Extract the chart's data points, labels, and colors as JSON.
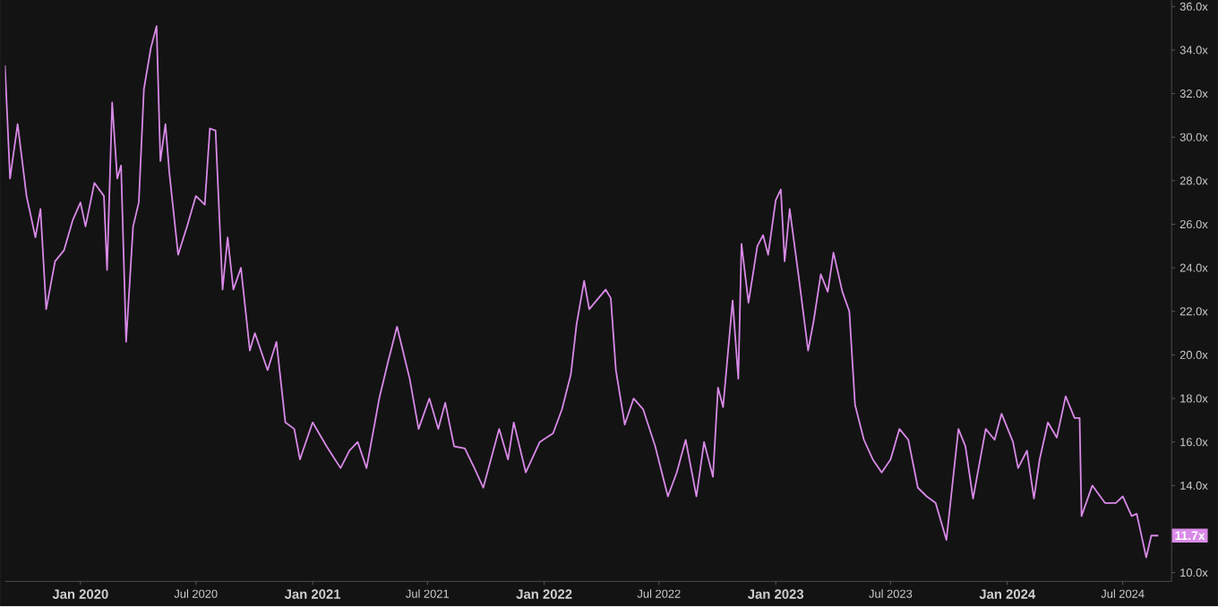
{
  "chart_data": {
    "type": "line",
    "x": [
      "2019-09-04",
      "2019-09-12",
      "2019-09-24",
      "2019-10-08",
      "2019-10-22",
      "2019-10-30",
      "2019-11-08",
      "2019-11-22",
      "2019-12-06",
      "2019-12-20",
      "2020-01-01",
      "2020-01-09",
      "2020-01-23",
      "2020-02-07",
      "2020-02-12",
      "2020-02-20",
      "2020-02-28",
      "2020-03-05",
      "2020-03-13",
      "2020-03-24",
      "2020-04-02",
      "2020-04-10",
      "2020-04-21",
      "2020-04-30",
      "2020-05-06",
      "2020-05-14",
      "2020-05-20",
      "2020-06-03",
      "2020-06-17",
      "2020-07-01",
      "2020-07-15",
      "2020-07-23",
      "2020-08-01",
      "2020-08-12",
      "2020-08-20",
      "2020-08-29",
      "2020-09-10",
      "2020-09-24",
      "2020-10-02",
      "2020-10-22",
      "2020-11-05",
      "2020-11-19",
      "2020-12-03",
      "2020-12-12",
      "2021-01-01",
      "2021-01-23",
      "2021-02-14",
      "2021-02-28",
      "2021-03-13",
      "2021-03-27",
      "2021-04-16",
      "2021-04-30",
      "2021-05-14",
      "2021-06-03",
      "2021-06-17",
      "2021-07-04",
      "2021-07-18",
      "2021-07-29",
      "2021-08-12",
      "2021-08-29",
      "2021-09-13",
      "2021-09-27",
      "2021-10-22",
      "2021-11-05",
      "2021-11-14",
      "2021-12-03",
      "2021-12-25",
      "2022-01-15",
      "2022-01-29",
      "2022-02-12",
      "2022-02-21",
      "2022-03-05",
      "2022-03-13",
      "2022-04-08",
      "2022-04-16",
      "2022-04-24",
      "2022-05-08",
      "2022-05-22",
      "2022-06-06",
      "2022-06-25",
      "2022-07-15",
      "2022-07-29",
      "2022-08-12",
      "2022-08-29",
      "2022-09-10",
      "2022-09-24",
      "2022-10-02",
      "2022-10-10",
      "2022-10-25",
      "2022-11-03",
      "2022-11-08",
      "2022-11-19",
      "2022-12-03",
      "2022-12-12",
      "2022-12-20",
      "2023-01-01",
      "2023-01-09",
      "2023-01-15",
      "2023-01-23",
      "2023-02-07",
      "2023-02-21",
      "2023-03-02",
      "2023-03-13",
      "2023-03-24",
      "2023-04-02",
      "2023-04-16",
      "2023-04-27",
      "2023-05-06",
      "2023-05-20",
      "2023-06-03",
      "2023-06-17",
      "2023-07-01",
      "2023-07-15",
      "2023-07-29",
      "2023-08-13",
      "2023-08-27",
      "2023-09-10",
      "2023-09-27",
      "2023-10-16",
      "2023-10-27",
      "2023-11-08",
      "2023-11-28",
      "2023-12-12",
      "2023-12-23",
      "2024-01-10",
      "2024-01-18",
      "2024-02-01",
      "2024-02-12",
      "2024-02-21",
      "2024-03-05",
      "2024-03-19",
      "2024-04-02",
      "2024-04-16",
      "2024-04-24",
      "2024-04-27",
      "2024-05-14",
      "2024-06-03",
      "2024-06-20",
      "2024-07-01",
      "2024-07-15",
      "2024-07-23",
      "2024-08-07",
      "2024-08-15",
      "2024-08-26"
    ],
    "series": [
      {
        "color": "#d98ae8",
        "values": [
          33.3,
          28.1,
          30.6,
          27.3,
          25.4,
          26.7,
          22.1,
          24.3,
          24.8,
          26.2,
          27.0,
          25.9,
          27.9,
          27.3,
          23.9,
          31.6,
          28.1,
          28.7,
          20.6,
          25.9,
          27.0,
          32.2,
          34.1,
          35.1,
          28.9,
          30.6,
          28.4,
          24.6,
          25.9,
          27.3,
          26.9,
          30.4,
          30.3,
          23.0,
          25.4,
          23.0,
          24.0,
          20.2,
          21.0,
          19.3,
          20.6,
          16.9,
          16.6,
          15.2,
          16.9,
          15.8,
          14.8,
          15.6,
          16.0,
          14.8,
          18.0,
          19.7,
          21.3,
          18.9,
          16.6,
          18.0,
          16.6,
          17.8,
          15.8,
          15.7,
          14.8,
          13.9,
          16.6,
          15.2,
          16.9,
          14.6,
          16.0,
          16.4,
          17.5,
          19.1,
          21.4,
          23.4,
          22.1,
          23.0,
          22.6,
          19.3,
          16.8,
          18.0,
          17.5,
          15.8,
          13.5,
          14.6,
          16.1,
          13.5,
          16.0,
          14.4,
          18.5,
          17.6,
          22.5,
          18.9,
          25.1,
          22.4,
          25.0,
          25.5,
          24.6,
          27.1,
          27.6,
          24.3,
          26.7,
          23.4,
          20.2,
          21.6,
          23.7,
          22.9,
          24.7,
          22.9,
          22.0,
          17.7,
          16.1,
          15.2,
          14.6,
          15.2,
          16.6,
          16.1,
          13.9,
          13.5,
          13.2,
          11.5,
          16.6,
          15.8,
          13.4,
          16.6,
          16.1,
          17.3,
          16.0,
          14.8,
          15.6,
          13.4,
          15.2,
          16.9,
          16.2,
          18.1,
          17.1,
          17.1,
          12.6,
          14.0,
          13.2,
          13.2,
          13.5,
          12.6,
          12.7,
          10.7,
          11.7,
          11.7
        ]
      }
    ],
    "xlim": [
      "2019-09-04",
      "2024-09-16"
    ],
    "xticks": [
      {
        "value": "2020-01-01",
        "label": "Jan 2020"
      },
      {
        "value": "2020-07-01",
        "label": "Jul 2020"
      },
      {
        "value": "2021-01-01",
        "label": "Jan 2021"
      },
      {
        "value": "2021-07-01",
        "label": "Jul 2021"
      },
      {
        "value": "2022-01-01",
        "label": "Jan 2022"
      },
      {
        "value": "2022-07-01",
        "label": "Jul 2022"
      },
      {
        "value": "2023-01-01",
        "label": "Jan 2023"
      },
      {
        "value": "2023-07-01",
        "label": "Jul 2023"
      },
      {
        "value": "2024-01-01",
        "label": "Jan 2024"
      },
      {
        "value": "2024-07-01",
        "label": "Jul 2024"
      }
    ],
    "ylim": [
      9.6,
      36.3
    ],
    "yticks": [
      {
        "value": 10,
        "label": "10.0x"
      },
      {
        "value": 14,
        "label": "14.0x"
      },
      {
        "value": 16,
        "label": "16.0x"
      },
      {
        "value": 18,
        "label": "18.0x"
      },
      {
        "value": 20,
        "label": "20.0x"
      },
      {
        "value": 22,
        "label": "22.0x"
      },
      {
        "value": 24,
        "label": "24.0x"
      },
      {
        "value": 26,
        "label": "26.0x"
      },
      {
        "value": 28,
        "label": "28.0x"
      },
      {
        "value": 30,
        "label": "30.0x"
      },
      {
        "value": 32,
        "label": "32.0x"
      },
      {
        "value": 34,
        "label": "34.0x"
      },
      {
        "value": 36,
        "label": "36.0x"
      }
    ],
    "annotations": [
      {
        "text": "11.7x",
        "x": "2024-08-26",
        "y": 11.7
      }
    ],
    "grid": false,
    "legend": false,
    "marker": "none",
    "line_style": "solid"
  }
}
